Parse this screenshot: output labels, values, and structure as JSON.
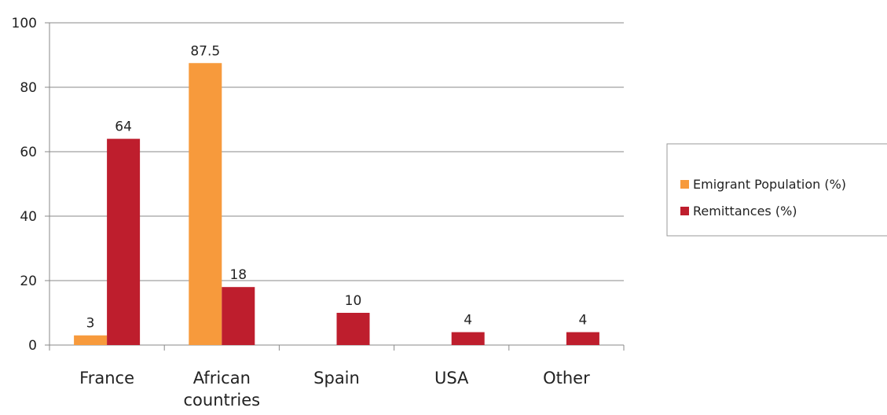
{
  "chart_data": {
    "type": "bar",
    "title": "",
    "xlabel": "",
    "ylabel": "",
    "ylim": [
      0,
      100
    ],
    "yticks": [
      0,
      20,
      40,
      60,
      80,
      100
    ],
    "grid": true,
    "legend_position": "right",
    "categories": [
      [
        "France"
      ],
      [
        "African",
        "countries"
      ],
      [
        "Spain"
      ],
      [
        "USA"
      ],
      [
        "Other"
      ]
    ],
    "series": [
      {
        "name": "Emigrant Population (%)",
        "color": "#F79A3C",
        "values": [
          3,
          87.5,
          null,
          null,
          null
        ],
        "labels": [
          "3",
          "87.5",
          "",
          "",
          ""
        ]
      },
      {
        "name": "Remittances (%)",
        "color": "#BE1E2D",
        "values": [
          64,
          18,
          10,
          4,
          4
        ],
        "labels": [
          "64",
          "18",
          "10",
          "4",
          "4"
        ]
      }
    ]
  }
}
